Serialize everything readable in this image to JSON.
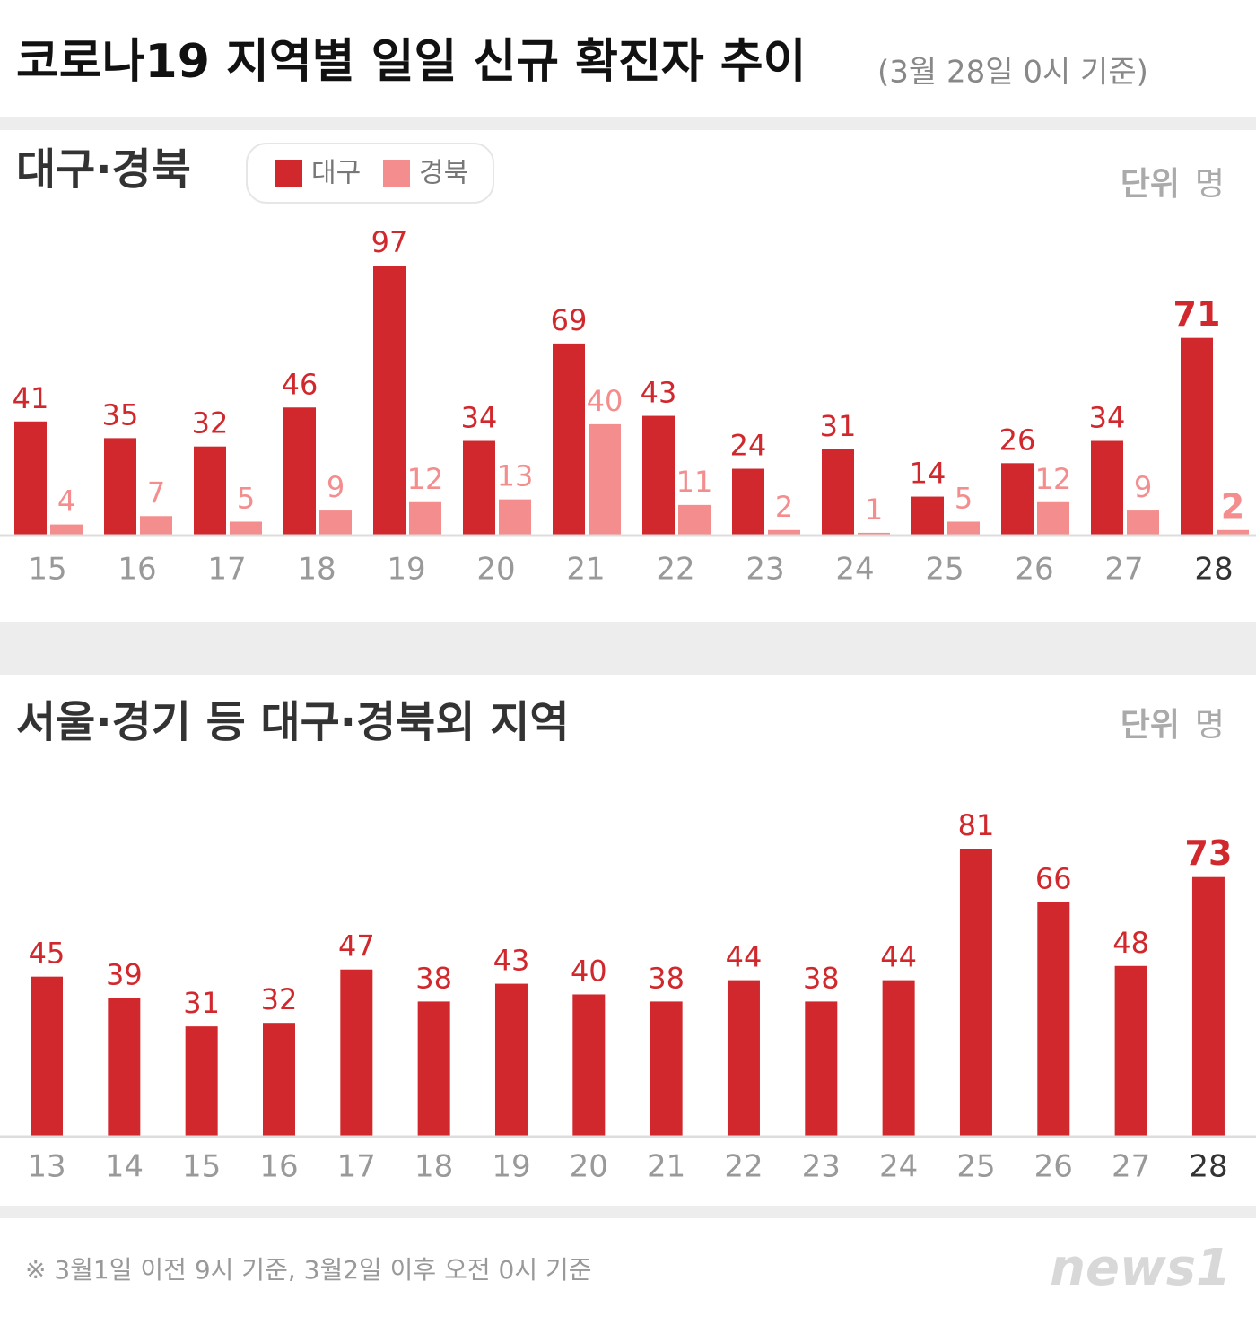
{
  "title": "코로나19 지역별 일일 신규 확진자 추이",
  "subtitle": "(3월 28일 0시 기준)",
  "chart_data": [
    {
      "type": "bar",
      "title": "대구·경북",
      "unit": "단위",
      "unit_label": "명",
      "categories": [
        "15",
        "16",
        "17",
        "18",
        "19",
        "20",
        "21",
        "22",
        "23",
        "24",
        "25",
        "26",
        "27",
        "28"
      ],
      "series": [
        {
          "name": "대구",
          "color": "#d0282c",
          "values": [
            41,
            35,
            32,
            46,
            97,
            34,
            69,
            43,
            24,
            31,
            14,
            26,
            34,
            71
          ]
        },
        {
          "name": "경북",
          "color": "#f48d8d",
          "values": [
            4,
            7,
            5,
            9,
            12,
            13,
            40,
            11,
            2,
            1,
            5,
            12,
            9,
            2
          ]
        }
      ]
    },
    {
      "type": "bar",
      "title": "서울·경기 등 대구·경북외 지역",
      "unit": "단위",
      "unit_label": "명",
      "categories": [
        "13",
        "14",
        "15",
        "16",
        "17",
        "18",
        "19",
        "20",
        "21",
        "22",
        "23",
        "24",
        "25",
        "26",
        "27",
        "28"
      ],
      "series": [
        {
          "name": "",
          "color": "#d0282c",
          "values": [
            45,
            39,
            31,
            32,
            47,
            38,
            43,
            40,
            38,
            44,
            38,
            44,
            81,
            66,
            48,
            73
          ]
        }
      ]
    }
  ],
  "footnote": "※ 3월1일 이전 9시 기준, 3월2일 이후 오전 0시 기준",
  "logo": "news1"
}
